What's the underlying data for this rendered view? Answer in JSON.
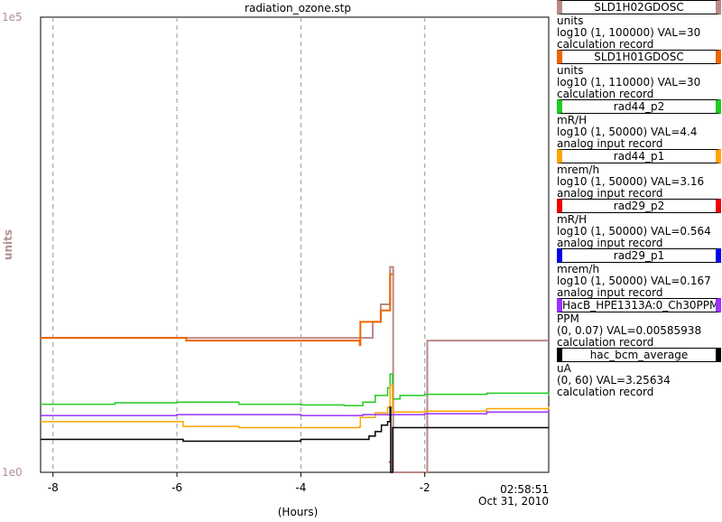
{
  "window": {
    "title": "radiation_ozone.stp"
  },
  "chart_data": {
    "type": "line",
    "title": "radiation_ozone.stp",
    "xlabel": "(Hours)",
    "ylabel": "units",
    "xlim": [
      -8.2,
      0.0
    ],
    "ylim": [
      1,
      100000
    ],
    "yscale": "log",
    "grid": true,
    "x_ticks": [
      "-8",
      "-6",
      "-4",
      "-2"
    ],
    "y_ticks": [
      "1e0",
      "1e5"
    ],
    "end_time": "02:58:51",
    "end_date": "Oct 31, 2010",
    "legend_position": "right",
    "series": [
      {
        "name": "SLD1H02GDOSC",
        "units": "units",
        "scale": "log10 (1, 100000) VAL=30",
        "record": "calculation record",
        "color": "#b98a88",
        "x": [
          -8.2,
          -2.85,
          -2.84,
          -2.72,
          -2.71,
          -2.57,
          -2.56,
          -2.52,
          -2.51,
          -1.97,
          -1.96,
          0.0
        ],
        "values": [
          30,
          30,
          45,
          45,
          70,
          70,
          180,
          180,
          1,
          1,
          28,
          28
        ]
      },
      {
        "name": "SLD1H01GDOSC",
        "units": "units",
        "scale": "log10 (1, 110000) VAL=30",
        "record": "calculation record",
        "color": "#ee6600",
        "x": [
          -8.2,
          -5.85,
          -3.05,
          -3.04,
          -2.72,
          -2.71,
          -2.57,
          -2.56,
          -2.52
        ],
        "values": [
          30,
          28,
          25,
          45,
          45,
          60,
          60,
          150,
          150
        ]
      },
      {
        "name": "rad44_p2",
        "units": "mR/H",
        "scale": "log10 (1, 50000) VAL=4.4",
        "record": "analog input record",
        "color": "#22cc22",
        "x": [
          -8.2,
          -7.0,
          -6.0,
          -5.0,
          -4.0,
          -3.3,
          -3.0,
          -2.8,
          -2.6,
          -2.56,
          -2.52,
          -2.4,
          -2.0,
          -1.0,
          0.0
        ],
        "values": [
          5.6,
          5.8,
          5.9,
          5.6,
          5.5,
          5.4,
          5.9,
          7.0,
          8.5,
          12,
          6.4,
          7.0,
          7.2,
          7.4,
          7.0
        ]
      },
      {
        "name": "rad44_p1",
        "units": "mrem/h",
        "scale": "log10 (1, 50000) VAL=3.16",
        "record": "analog input record",
        "color": "#ffa500",
        "x": [
          -8.2,
          -7.0,
          -6.0,
          -5.9,
          -5.0,
          -4.0,
          -3.05,
          -3.04,
          -2.8,
          -2.6,
          -2.56,
          -2.52,
          -2.0,
          -1.0,
          0.0
        ],
        "values": [
          3.6,
          3.6,
          3.6,
          3.2,
          3.1,
          3.1,
          3.2,
          4.0,
          4.5,
          5.2,
          9,
          4.6,
          4.7,
          5.0,
          5.3
        ]
      },
      {
        "name": "rad29_p2",
        "units": "mR/H",
        "scale": "log10 (1, 50000) VAL=0.564",
        "record": "analog input record",
        "color": "#ee0000",
        "x": [
          -2.58,
          -2.55
        ],
        "values": [
          1.3,
          1.3
        ]
      },
      {
        "name": "rad29_p1",
        "units": "mrem/h",
        "scale": "log10 (1, 50000) VAL=0.167",
        "record": "analog input record",
        "color": "#0000ee",
        "x": [],
        "values": []
      },
      {
        "name": "HacB_HPE1313A:0_Ch30PPM",
        "units": "PPM",
        "scale": "(0, 0.07) VAL=0.00585938",
        "record": "calculation record",
        "color": "#9933ff",
        "x": [
          -8.2,
          -6.0,
          -5.0,
          -4.0,
          -3.0,
          -2.0,
          -1.0,
          0.0
        ],
        "values": [
          4.2,
          4.3,
          4.3,
          4.2,
          4.3,
          4.4,
          4.6,
          4.7
        ]
      },
      {
        "name": "hac_bcm_average",
        "units": "uA",
        "scale": "(0, 60) VAL=3.25634",
        "record": "calculation record",
        "color": "#000000",
        "x": [
          -8.2,
          -6.0,
          -5.9,
          -5.0,
          -4.0,
          -3.0,
          -2.9,
          -2.8,
          -2.7,
          -2.6,
          -2.56,
          -2.55,
          -2.52,
          -2.0,
          -1.0,
          0.0
        ],
        "values": [
          2.3,
          2.3,
          2.2,
          2.2,
          2.3,
          2.3,
          2.5,
          2.8,
          3.3,
          3.6,
          5.2,
          1.0,
          3.1,
          3.1,
          3.1,
          3.1
        ]
      }
    ]
  }
}
